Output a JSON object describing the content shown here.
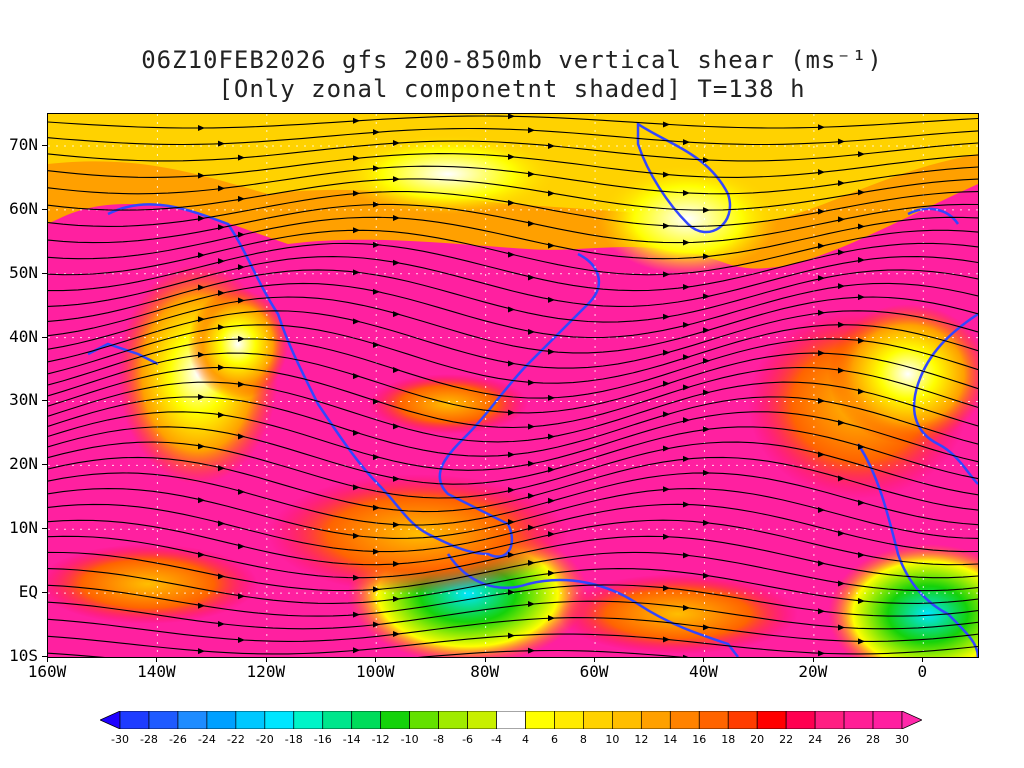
{
  "title": {
    "line1": "06Z10FEB2026 gfs 200-850mb vertical shear (ms⁻¹)",
    "line2": "[Only zonal componetnt shaded] T=138 h"
  },
  "axes": {
    "lat_labels": [
      "70N",
      "60N",
      "50N",
      "40N",
      "30N",
      "20N",
      "10N",
      "EQ",
      "10S"
    ],
    "lon_labels": [
      "160W",
      "140W",
      "120W",
      "100W",
      "80W",
      "60W",
      "40W",
      "20W",
      "0"
    ]
  },
  "colorbar": {
    "labels": [
      "-30",
      "-28",
      "-26",
      "-24",
      "-22",
      "-20",
      "-18",
      "-16",
      "-14",
      "-12",
      "-10",
      "-8",
      "-6",
      "-4",
      "4",
      "6",
      "8",
      "10",
      "12",
      "14",
      "16",
      "18",
      "20",
      "22",
      "24",
      "26",
      "28",
      "30"
    ],
    "colors": [
      "#1e00ff",
      "#1e3cff",
      "#1e5aff",
      "#1e8cff",
      "#00a0ff",
      "#00c8ff",
      "#00e6ff",
      "#00f5c8",
      "#00e68c",
      "#00dc5a",
      "#14d20a",
      "#64e100",
      "#a0eb00",
      "#c8f000",
      "#ffffff",
      "#ffff00",
      "#ffeb00",
      "#ffd200",
      "#ffbe00",
      "#ffa000",
      "#ff8200",
      "#ff6400",
      "#ff3c00",
      "#ff0000",
      "#ff0050",
      "#ff1e82",
      "#ff1e96",
      "#ff1ea0",
      "#ff28aa"
    ]
  },
  "colors": {
    "coastline": "#3246ff",
    "streamline": "#000000",
    "contour": "#8c28a0"
  }
}
